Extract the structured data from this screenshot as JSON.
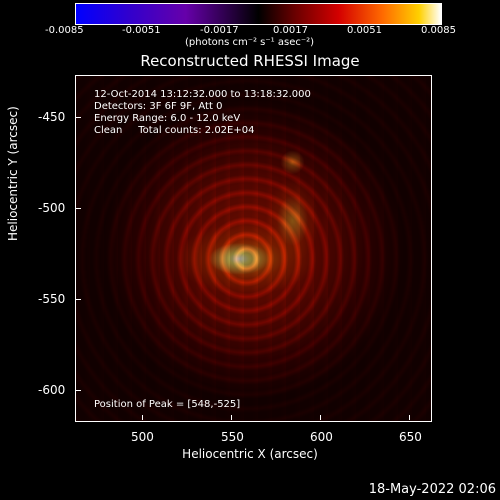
{
  "colorbar": {
    "ticks": [
      "-0.0085",
      "-0.0051",
      "-0.0017",
      "0.0017",
      "0.0051",
      "0.0085"
    ],
    "unit": "(photons cm⁻² s⁻¹ asec⁻²)"
  },
  "image": {
    "title": "Reconstructed RHESSI Image",
    "time_range": "12-Oct-2014 13:12:32.000 to 13:18:32.000",
    "detectors": "Detectors: 3F 6F 9F, Att 0",
    "energy": "Energy Range: 6.0 - 12.0 keV",
    "clean": "Clean     Total counts: 2.02E+04",
    "peak": "Position of Peak = [548,-525]"
  },
  "axes": {
    "xlabel": "Heliocentric X (arcsec)",
    "ylabel": "Heliocentric Y (arcsec)",
    "xticks": [
      "500",
      "550",
      "600",
      "650"
    ],
    "yticks": [
      "-450",
      "-500",
      "-550",
      "-600"
    ]
  },
  "footer": {
    "date": "18-May-2022 02:06"
  }
}
